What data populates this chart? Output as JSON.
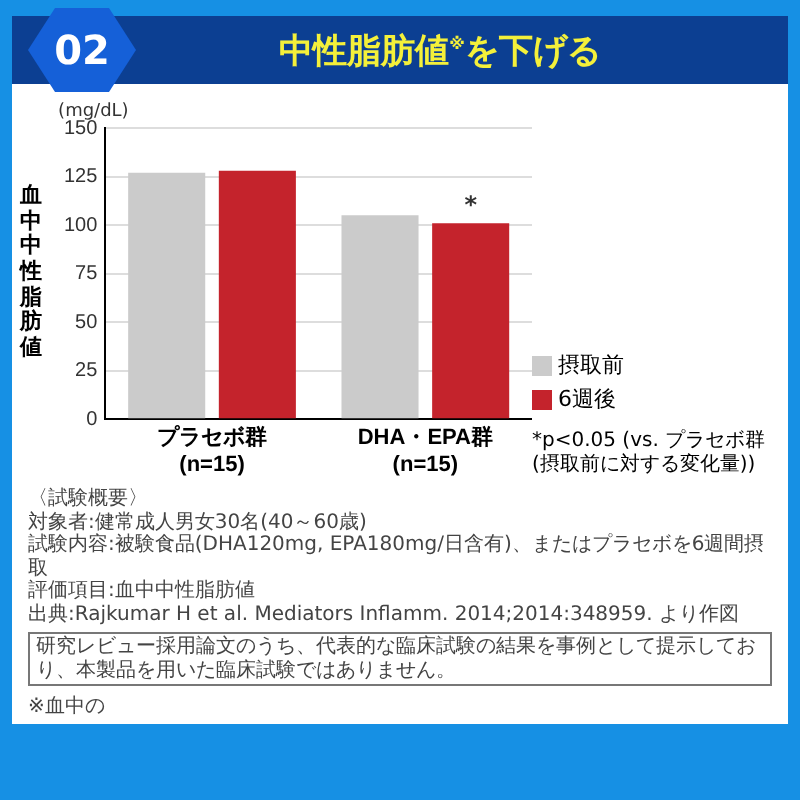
{
  "chart_data": {
    "type": "bar",
    "title": "中性脂肪値$^{※}$を下げる",
    "ylabel": "血中中性脂肪値",
    "categories": [
      "プラセボ群\n(n=15)",
      "DHA・EPA群\n(n=15)"
    ],
    "series": [
      {
        "name": "摂取前",
        "color": "#cbcbcb",
        "values": [
          127,
          105
        ]
      },
      {
        "name": "6週後",
        "color": "#c4232c",
        "values": [
          128,
          101
        ]
      }
    ],
    "ylim": [
      0,
      150
    ],
    "yticks": [
      0,
      25,
      50,
      75,
      100,
      125,
      150
    ],
    "grid": "y",
    "legend": "bottom right",
    "annotations": [
      "02",
      "(mg/dL)",
      {
        "text": "*",
        "x": "DHA・EPA群\n(n=15)",
        "y": 101
      },
      "*p<0.05 (vs. プラセボ群(摂取前に対する変化量))",
      "〈試験概要〉",
      "対象者:健常成人男女30名(40～60歳)",
      "試験内容:被験食品(DHA120mg, EPA180mg/日含有)、またはプラセボを6週間摂取",
      "評価項目:血中中性脂肪値",
      "出典:Rajkumar H et al. Mediators Inflamm. 2014;2014:348959. より作図",
      "研究レビュー採用論文のうち、代表的な臨床試験の結果を事例として提示しており、本製品を用いた臨床試験ではありません。",
      "※血中の"
    ]
  }
}
